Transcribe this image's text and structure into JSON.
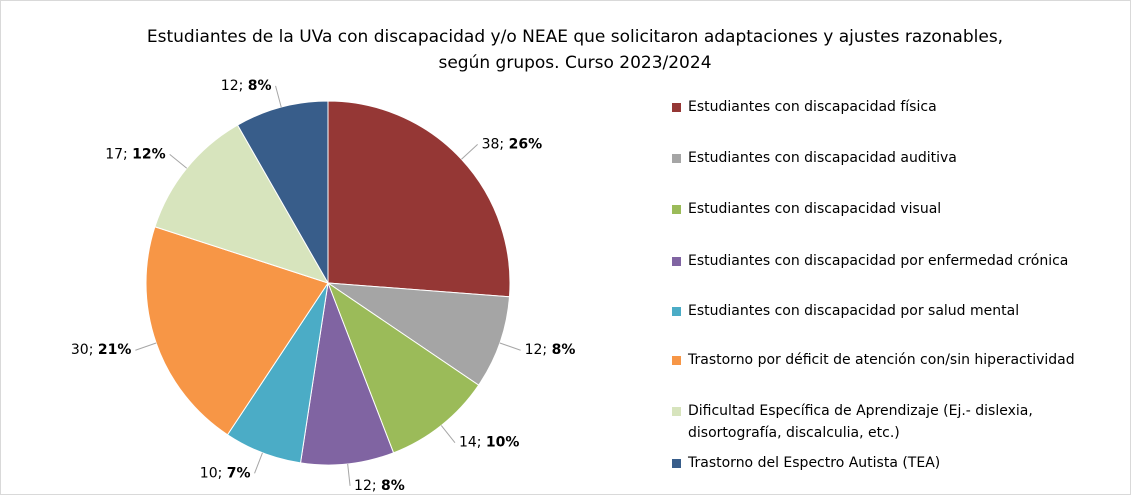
{
  "chart_data": {
    "type": "pie",
    "title": "Estudiantes de la UVa con discapacidad y/o NEAE que solicitaron adaptaciones y ajustes razonables, según grupos. Curso 2023/2024",
    "categories": [
      "Estudiantes con discapacidad física",
      "Estudiantes con discapacidad auditiva",
      "Estudiantes con discapacidad visual",
      "Estudiantes con discapacidad por enfermedad crónica",
      "Estudiantes con discapacidad por salud mental",
      "Trastorno por déficit de atención con/sin hiperactividad",
      "Dificultad Específica de Aprendizaje (Ej.- dislexia, disortografía, discalculia, etc.)",
      "Trastorno del Espectro Autista (TEA)"
    ],
    "values": [
      38,
      12,
      14,
      12,
      10,
      30,
      17,
      12
    ],
    "value_labels": [
      "38; 26%",
      "12; 8%",
      "14; 10%",
      "12; 8%",
      "10; 7%",
      "30; 21%",
      "17; 12%",
      "12; 8%"
    ],
    "colors": [
      "#953735",
      "#a5a5a5",
      "#9bbb59",
      "#8064a2",
      "#4bacc6",
      "#f79646",
      "#d7e4bd",
      "#385d8a"
    ],
    "legend": "right"
  }
}
